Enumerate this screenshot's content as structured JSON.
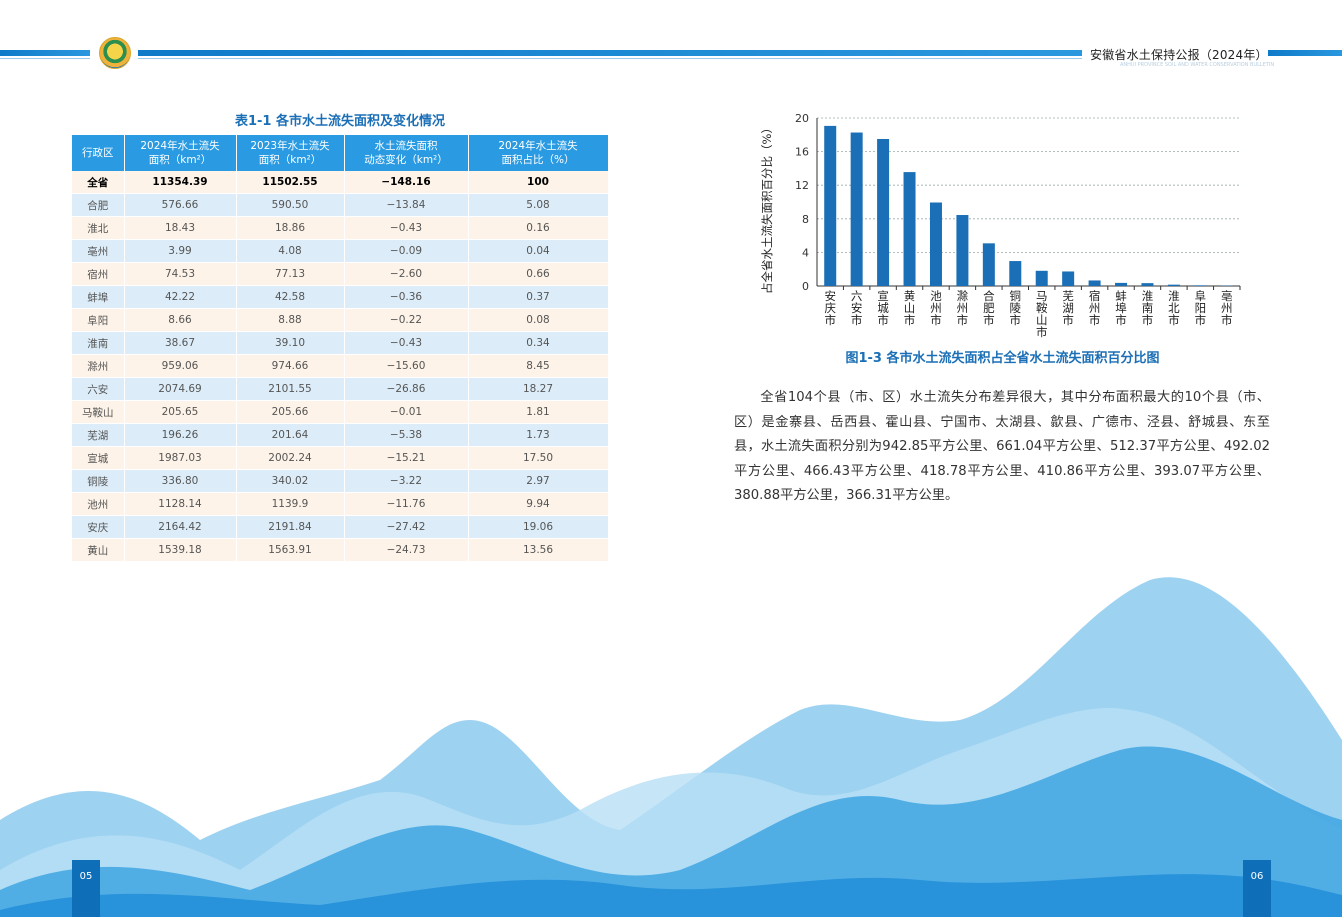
{
  "header": {
    "title": "安徽省水土保持公报（2024年）",
    "subtitle": "ANHUI PROVINCE SOIL AND WATER CONSERVATION BULLETIN"
  },
  "table": {
    "caption": "表1-1  各市水土流失面积及变化情况",
    "headers": [
      "行政区",
      "2024年水土流失\n面积（km²）",
      "2023年水土流失\n面积（km²）",
      "水土流失面积\n动态变化（km²）",
      "2024年水土流失\n面积占比（%）"
    ],
    "rows": [
      [
        "全省",
        "11354.39",
        "11502.55",
        "−148.16",
        "100"
      ],
      [
        "合肥",
        "576.66",
        "590.50",
        "−13.84",
        "5.08"
      ],
      [
        "淮北",
        "18.43",
        "18.86",
        "−0.43",
        "0.16"
      ],
      [
        "亳州",
        "3.99",
        "4.08",
        "−0.09",
        "0.04"
      ],
      [
        "宿州",
        "74.53",
        "77.13",
        "−2.60",
        "0.66"
      ],
      [
        "蚌埠",
        "42.22",
        "42.58",
        "−0.36",
        "0.37"
      ],
      [
        "阜阳",
        "8.66",
        "8.88",
        "−0.22",
        "0.08"
      ],
      [
        "淮南",
        "38.67",
        "39.10",
        "−0.43",
        "0.34"
      ],
      [
        "滁州",
        "959.06",
        "974.66",
        "−15.60",
        "8.45"
      ],
      [
        "六安",
        "2074.69",
        "2101.55",
        "−26.86",
        "18.27"
      ],
      [
        "马鞍山",
        "205.65",
        "205.66",
        "−0.01",
        "1.81"
      ],
      [
        "芜湖",
        "196.26",
        "201.64",
        "−5.38",
        "1.73"
      ],
      [
        "宣城",
        "1987.03",
        "2002.24",
        "−15.21",
        "17.50"
      ],
      [
        "铜陵",
        "336.80",
        "340.02",
        "−3.22",
        "2.97"
      ],
      [
        "池州",
        "1128.14",
        "1139.9",
        "−11.76",
        "9.94"
      ],
      [
        "安庆",
        "2164.42",
        "2191.84",
        "−27.42",
        "19.06"
      ],
      [
        "黄山",
        "1539.18",
        "1563.91",
        "−24.73",
        "13.56"
      ]
    ]
  },
  "chart_data": {
    "type": "bar",
    "title": "图1-3  各市水土流失面积占全省水土流失面积百分比图",
    "xlabel": "",
    "ylabel": "占全省水土流失面积百分比（%）",
    "ylim": [
      0,
      20
    ],
    "yticks": [
      "0",
      "4",
      "8",
      "12",
      "16",
      "20"
    ],
    "categories": [
      "安庆市",
      "六安市",
      "宣城市",
      "黄山市",
      "池州市",
      "滁州市",
      "合肥市",
      "铜陵市",
      "马鞍山市",
      "芜湖市",
      "宿州市",
      "蚌埠市",
      "淮南市",
      "淮北市",
      "阜阳市",
      "亳州市"
    ],
    "values": [
      19.06,
      18.27,
      17.5,
      13.56,
      9.94,
      8.45,
      5.08,
      2.97,
      1.81,
      1.73,
      0.66,
      0.37,
      0.34,
      0.16,
      0.08,
      0.04
    ],
    "grid": true,
    "bar_color": "#1b6fb6"
  },
  "paragraph": "全省104个县（市、区）水土流失分布差异很大，其中分布面积最大的10个县（市、区）是金寨县、岳西县、霍山县、宁国市、太湖县、歙县、广德市、泾县、舒城县、东至县，水土流失面积分别为942.85平方公里、661.04平方公里、512.37平方公里、492.02平方公里、466.43平方公里、418.78平方公里、410.86平方公里、393.07平方公里、380.88平方公里，366.31平方公里。",
  "pages": {
    "left": "05",
    "right": "06"
  },
  "colors": {
    "accent": "#1b6fb6",
    "header_blue": "#2a9be2",
    "row_warm": "#fdf3e8",
    "row_cool": "#dcedf9"
  }
}
